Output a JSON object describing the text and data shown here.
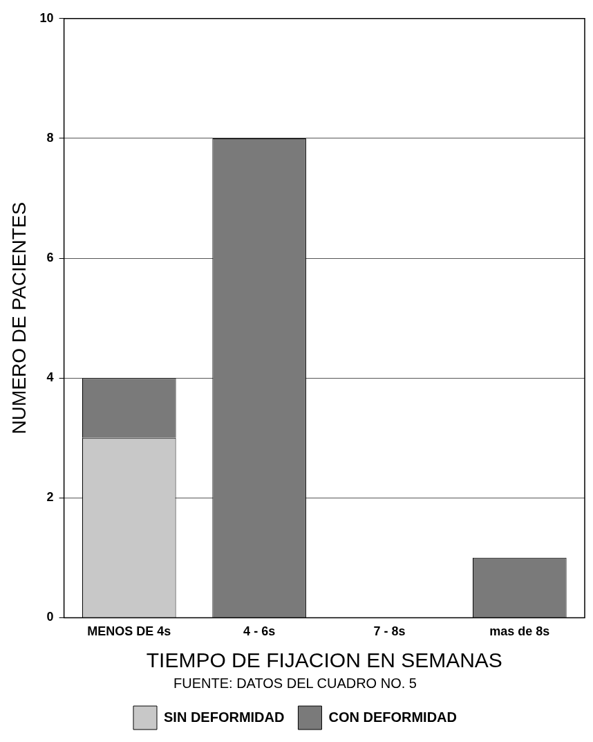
{
  "chart_data": {
    "type": "bar",
    "stacked": true,
    "xlabel": "TIEMPO DE FIJACION EN SEMANAS",
    "ylabel": "NUMERO DE PACIENTES",
    "annotations": [
      "FUENTE: DATOS DEL CUADRO NO. 5"
    ],
    "categories": [
      "MENOS DE 4s",
      "4 - 6s",
      "7 - 8s",
      "mas de 8s"
    ],
    "series": [
      {
        "name": "SIN DEFORMIDAD",
        "color": "#c8c8c8",
        "values": [
          3,
          0,
          0,
          0
        ]
      },
      {
        "name": "CON DEFORMIDAD",
        "color": "#7a7a7a",
        "values": [
          1,
          8,
          0,
          1
        ]
      }
    ],
    "ylim": [
      0,
      10
    ],
    "yticks": [
      0,
      2,
      4,
      6,
      8,
      10
    ],
    "grid": "y",
    "legend": "bottom"
  }
}
